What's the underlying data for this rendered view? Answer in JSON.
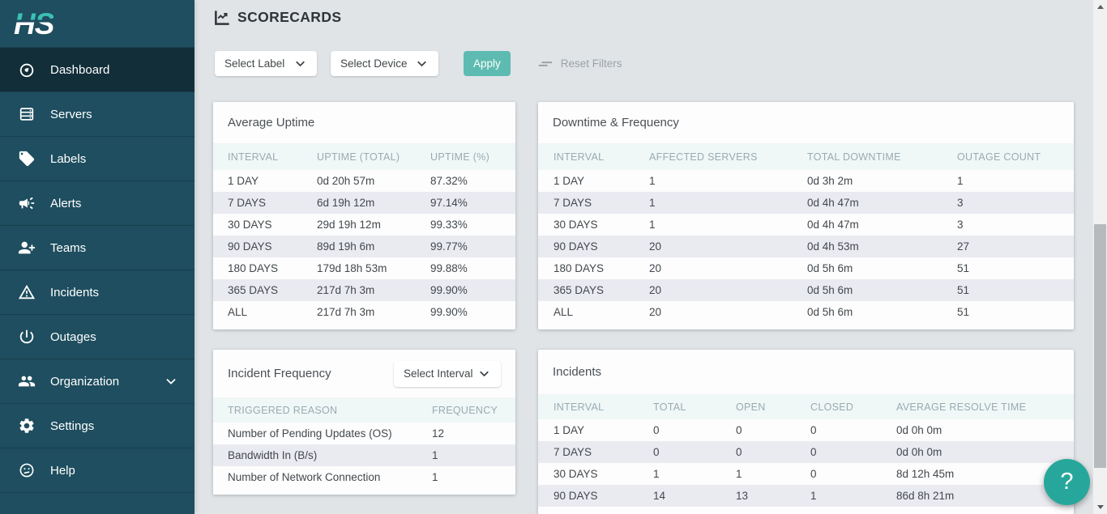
{
  "logo": {
    "text": "HS"
  },
  "sidebar": {
    "items": [
      {
        "label": "Dashboard"
      },
      {
        "label": "Servers"
      },
      {
        "label": "Labels"
      },
      {
        "label": "Alerts"
      },
      {
        "label": "Teams"
      },
      {
        "label": "Incidents"
      },
      {
        "label": "Outages"
      },
      {
        "label": "Organization"
      },
      {
        "label": "Settings"
      },
      {
        "label": "Help"
      }
    ]
  },
  "header": {
    "title": "SCORECARDS"
  },
  "filters": {
    "label_select": "Select Label",
    "device_select": "Select Device",
    "apply": "Apply",
    "reset": "Reset Filters"
  },
  "cards": {
    "average_uptime": {
      "title": "Average Uptime",
      "columns": [
        "INTERVAL",
        "UPTIME (TOTAL)",
        "UPTIME (%)"
      ],
      "rows": [
        [
          "1 DAY",
          "0d 20h 57m",
          "87.32%"
        ],
        [
          "7 DAYS",
          "6d 19h 12m",
          "97.14%"
        ],
        [
          "30 DAYS",
          "29d 19h 12m",
          "99.33%"
        ],
        [
          "90 DAYS",
          "89d 19h 6m",
          "99.77%"
        ],
        [
          "180 DAYS",
          "179d 18h 53m",
          "99.88%"
        ],
        [
          "365 DAYS",
          "217d 7h 3m",
          "99.90%"
        ],
        [
          "ALL",
          "217d 7h 3m",
          "99.90%"
        ]
      ]
    },
    "downtime_frequency": {
      "title": "Downtime & Frequency",
      "columns": [
        "INTERVAL",
        "AFFECTED SERVERS",
        "TOTAL DOWNTIME",
        "OUTAGE COUNT"
      ],
      "rows": [
        [
          "1 DAY",
          "1",
          "0d 3h 2m",
          "1"
        ],
        [
          "7 DAYS",
          "1",
          "0d 4h 47m",
          "3"
        ],
        [
          "30 DAYS",
          "1",
          "0d 4h 47m",
          "3"
        ],
        [
          "90 DAYS",
          "20",
          "0d 4h 53m",
          "27"
        ],
        [
          "180 DAYS",
          "20",
          "0d 5h 6m",
          "51"
        ],
        [
          "365 DAYS",
          "20",
          "0d 5h 6m",
          "51"
        ],
        [
          "ALL",
          "20",
          "0d 5h 6m",
          "51"
        ]
      ]
    },
    "incident_frequency": {
      "title": "Incident Frequency",
      "interval_select": "Select Interval",
      "columns": [
        "TRIGGERED REASON",
        "FREQUENCY"
      ],
      "rows": [
        [
          "Number of Pending Updates (OS)",
          "12"
        ],
        [
          "Bandwidth In (B/s)",
          "1"
        ],
        [
          "Number of Network Connection",
          "1"
        ]
      ]
    },
    "incidents": {
      "title": "Incidents",
      "columns": [
        "INTERVAL",
        "TOTAL",
        "OPEN",
        "CLOSED",
        "AVERAGE RESOLVE TIME"
      ],
      "rows": [
        [
          "1 DAY",
          "0",
          "0",
          "0",
          "0d 0h 0m"
        ],
        [
          "7 DAYS",
          "0",
          "0",
          "0",
          "0d 0h 0m"
        ],
        [
          "30 DAYS",
          "1",
          "1",
          "0",
          "8d 12h 45m"
        ],
        [
          "90 DAYS",
          "14",
          "13",
          "1",
          "86d 8h 21m"
        ]
      ]
    }
  },
  "help_button": {
    "label": "?"
  },
  "colors": {
    "sidebar_bg": "#1e4e5f",
    "sidebar_active_bg": "#112e39",
    "logo_teal": "#3cc0b4",
    "apply_button": "#5dbbb1",
    "help_fab": "#27a79b",
    "main_bg": "#e0e4e7",
    "table_header_bg": "#eff8f7",
    "row_stripe": "#eaebf1",
    "muted_text": "#9ba1a7"
  }
}
